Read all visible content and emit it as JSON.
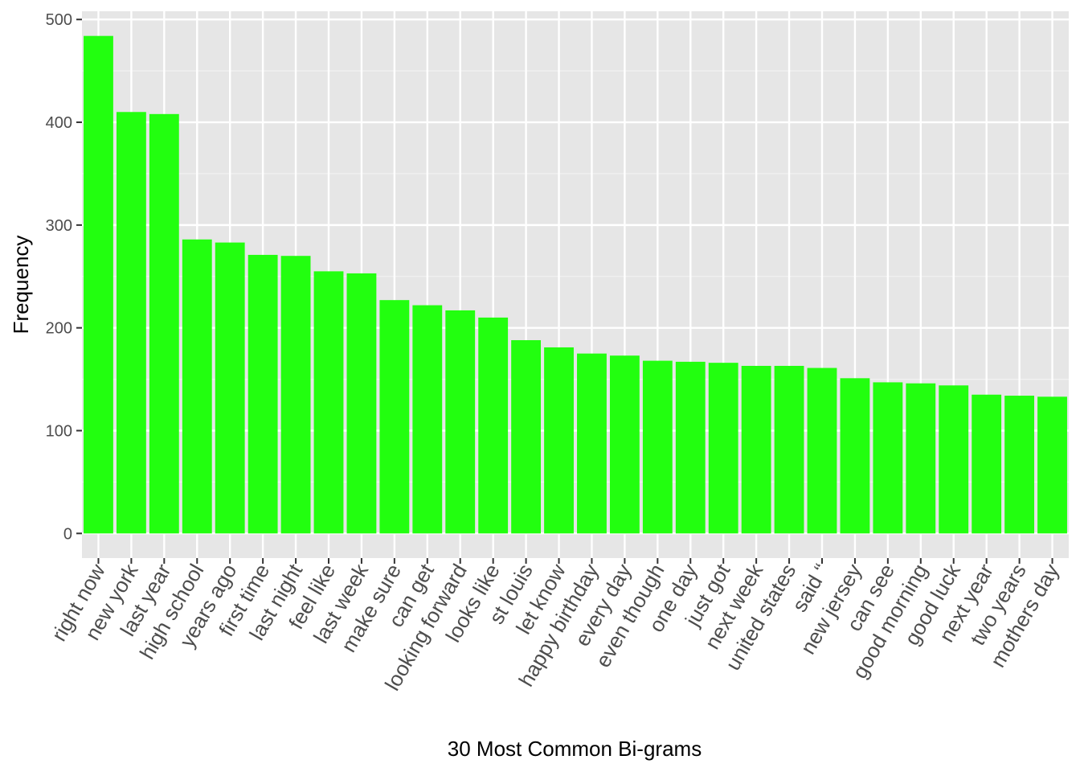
{
  "chart_data": {
    "type": "bar",
    "xlabel": "30 Most Common Bi-grams",
    "ylabel": "Frequency",
    "ylim": [
      -24,
      508
    ],
    "yticks": [
      0,
      100,
      200,
      300,
      400,
      500
    ],
    "grid": true,
    "legend": "none",
    "colors": {
      "bar": "#22ff0f",
      "panel": "#e6e6e6",
      "grid_major": "#ffffff",
      "grid_minor": "#f2f2f2"
    },
    "categories": [
      "right now",
      "new york",
      "last year",
      "high school",
      "years ago",
      "first time",
      "last night",
      "feel like",
      "last week",
      "make sure",
      "can get",
      "looking forward",
      "looks like",
      "st louis",
      "let know",
      "happy birthday",
      "every day",
      "even though",
      "one day",
      "just got",
      "next week",
      "united states",
      "said “",
      "new jersey",
      "can see",
      "good morning",
      "good luck",
      "next year",
      "two years",
      "mothers day"
    ],
    "values": [
      484,
      410,
      408,
      286,
      283,
      271,
      270,
      255,
      253,
      227,
      222,
      217,
      210,
      188,
      181,
      175,
      173,
      168,
      167,
      166,
      163,
      163,
      161,
      151,
      147,
      146,
      144,
      135,
      134,
      133
    ]
  }
}
